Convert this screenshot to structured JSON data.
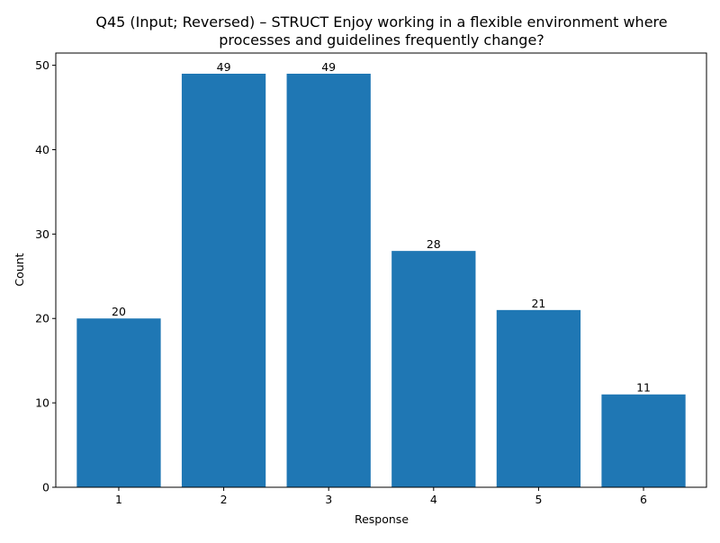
{
  "chart_data": {
    "type": "bar",
    "title_lines": [
      "Q45 (Input; Reversed) – STRUCT Enjoy working in a flexible environment where",
      "processes and guidelines frequently change?"
    ],
    "xlabel": "Response",
    "ylabel": "Count",
    "categories": [
      "1",
      "2",
      "3",
      "4",
      "5",
      "6"
    ],
    "values": [
      20,
      49,
      49,
      28,
      21,
      11
    ],
    "ylim": [
      0,
      51.45
    ],
    "yticks": [
      0,
      10,
      20,
      30,
      40,
      50
    ],
    "bar_color": "#1f77b4",
    "grid": false,
    "legend": "none"
  }
}
